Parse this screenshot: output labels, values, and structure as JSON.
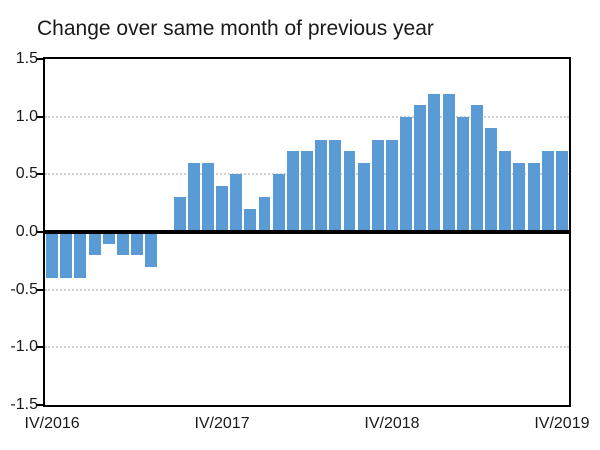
{
  "chart_data": {
    "type": "bar",
    "title": "Change over same month of previous year",
    "n_bars": 37,
    "period_start": "IV/2016",
    "period_end": "IV/2019",
    "values": [
      -0.4,
      -0.4,
      -0.4,
      -0.2,
      -0.1,
      -0.2,
      -0.2,
      -0.3,
      0.0,
      0.3,
      0.6,
      0.6,
      0.4,
      0.5,
      0.2,
      0.3,
      0.5,
      0.7,
      0.7,
      0.8,
      0.8,
      0.7,
      0.6,
      0.8,
      0.8,
      1.0,
      1.1,
      1.2,
      1.2,
      1.0,
      1.1,
      0.9,
      0.7,
      0.6,
      0.6,
      0.7,
      0.7
    ],
    "x_tick_labels": [
      "IV/2016",
      "IV/2017",
      "IV/2018",
      "IV/2019"
    ],
    "x_tick_bar_indices": [
      0,
      12,
      24,
      36
    ],
    "y_tick_labels": [
      "1.5",
      "1.0",
      "0.5",
      "0.0",
      "-0.5",
      "-1.0",
      "-1.5"
    ],
    "y_tick_values": [
      1.5,
      1.0,
      0.5,
      0.0,
      -0.5,
      -1.0,
      -1.5
    ],
    "ylim": [
      -1.5,
      1.5
    ],
    "grid_values": [
      1.0,
      0.5,
      -0.5,
      -1.0
    ],
    "grid_style": "dotted",
    "legend": "none",
    "colors": {
      "bar": "#5B9BD5",
      "grid": "#cfcfcf",
      "axis": "#000000",
      "text": "#1a1a1a",
      "background": "#ffffff"
    }
  }
}
